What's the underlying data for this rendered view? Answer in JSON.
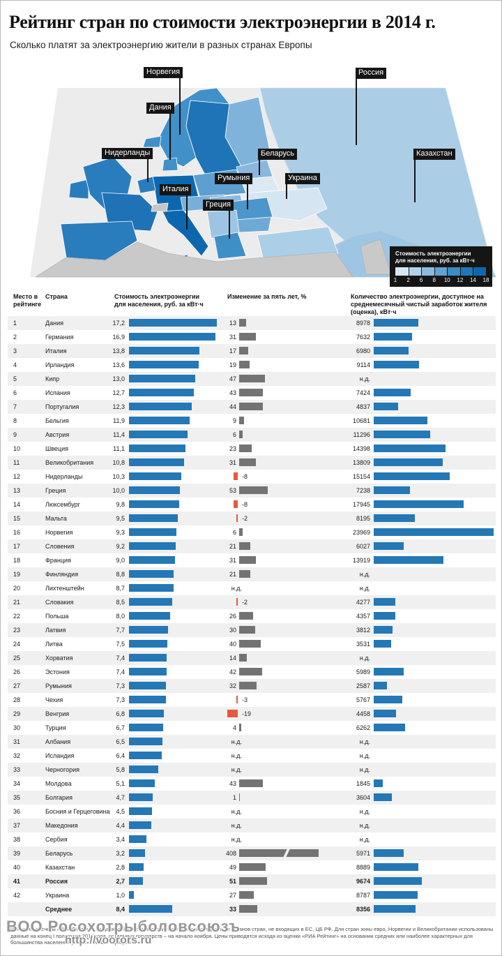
{
  "title": "Рейтинг стран по стоимости электроэнергии в 2014 г.",
  "subtitle": "Сколько платят за электроэнергию жители в разных странах Европы",
  "colors": {
    "bar_blue": "#2478b5",
    "bar_gray": "#737373",
    "bar_red": "#e8583f",
    "row_alt": "#f0f0f0",
    "label_bg": "#151515"
  },
  "map": {
    "labels": [
      {
        "id": "norway",
        "text": "Норвегия"
      },
      {
        "id": "russia",
        "text": "Россия"
      },
      {
        "id": "denmark",
        "text": "Дания"
      },
      {
        "id": "netherlands",
        "text": "Нидерланды"
      },
      {
        "id": "belarus",
        "text": "Беларусь"
      },
      {
        "id": "kazakhstan",
        "text": "Казахстан"
      },
      {
        "id": "romania",
        "text": "Румыния"
      },
      {
        "id": "ukraine",
        "text": "Украина"
      },
      {
        "id": "italy",
        "text": "Италия"
      },
      {
        "id": "greece",
        "text": "Греция"
      }
    ],
    "legend": {
      "title_line1": "Стоимость электроэнергии",
      "title_line2": "для населения, руб. за кВт·ч",
      "ticks": [
        1,
        2,
        6,
        8,
        10,
        12,
        14,
        18
      ],
      "colors": [
        "#d8e7f4",
        "#b3d2ea",
        "#8bbade",
        "#61a3d2",
        "#3a8cc5",
        "#1f78b6",
        "#0e67ad"
      ]
    }
  },
  "table": {
    "headers": {
      "rank": "Место в рейтинге",
      "country": "Страна",
      "cost": "Стоимость электроэнергии для населения, руб. за кВт·ч",
      "change": "Изменение за пять лет, %",
      "kwh": "Количество электроэнергии, доступное на среднемесячный чистый заработок жителя (оценка), кВт·ч"
    },
    "nd_label": "н.д."
  },
  "chart_data": {
    "type": "table",
    "title": "Рейтинг стран по стоимости электроэнергии в 2014 г.",
    "columns": [
      "Место в рейтинге",
      "Страна",
      "Стоимость электроэнергии для населения, руб. за кВт·ч",
      "Изменение за пять лет, %",
      "Количество электроэнергии, доступное на среднемесячный чистый заработок жителя (оценка), кВт·ч"
    ],
    "cost_axis_max": 17.2,
    "kwh_axis_max": 23969,
    "rows": [
      {
        "rank": "1",
        "name": "Дания",
        "cost": 17.2,
        "chg": 13,
        "kwh": 8978
      },
      {
        "rank": "2",
        "name": "Германия",
        "cost": 16.9,
        "chg": 31,
        "kwh": 7632
      },
      {
        "rank": "3",
        "name": "Италия",
        "cost": 13.8,
        "chg": 17,
        "kwh": 6980
      },
      {
        "rank": "4",
        "name": "Ирландия",
        "cost": 13.6,
        "chg": 19,
        "kwh": 9114
      },
      {
        "rank": "5",
        "name": "Кипр",
        "cost": 13.0,
        "chg": 47,
        "kwh": null
      },
      {
        "rank": "6",
        "name": "Испания",
        "cost": 12.7,
        "chg": 43,
        "kwh": 7424
      },
      {
        "rank": "7",
        "name": "Португалия",
        "cost": 12.3,
        "chg": 44,
        "kwh": 4837
      },
      {
        "rank": "8",
        "name": "Бельгия",
        "cost": 11.9,
        "chg": 9,
        "kwh": 10681
      },
      {
        "rank": "9",
        "name": "Австрия",
        "cost": 11.4,
        "chg": 6,
        "kwh": 11296
      },
      {
        "rank": "10",
        "name": "Швеция",
        "cost": 11.1,
        "chg": 23,
        "kwh": 14398
      },
      {
        "rank": "11",
        "name": "Великобритания",
        "cost": 10.8,
        "chg": 31,
        "kwh": 13809
      },
      {
        "rank": "12",
        "name": "Нидерланды",
        "cost": 10.3,
        "chg": -8,
        "kwh": 15154
      },
      {
        "rank": "13",
        "name": "Греция",
        "cost": 10.0,
        "chg": 53,
        "kwh": 7238
      },
      {
        "rank": "14",
        "name": "Люксембург",
        "cost": 9.8,
        "chg": -8,
        "kwh": 17945
      },
      {
        "rank": "15",
        "name": "Мальта",
        "cost": 9.5,
        "chg": -2,
        "kwh": 8195
      },
      {
        "rank": "16",
        "name": "Норвегия",
        "cost": 9.3,
        "chg": 6,
        "kwh": 23969
      },
      {
        "rank": "17",
        "name": "Словения",
        "cost": 9.2,
        "chg": 21,
        "kwh": 6027
      },
      {
        "rank": "18",
        "name": "Франция",
        "cost": 9.0,
        "chg": 31,
        "kwh": 13919
      },
      {
        "rank": "19",
        "name": "Финляндия",
        "cost": 8.8,
        "chg": 21,
        "kwh": null
      },
      {
        "rank": "20",
        "name": "Лихтенштейн",
        "cost": 8.7,
        "chg": null,
        "kwh": null
      },
      {
        "rank": "21",
        "name": "Словакия",
        "cost": 8.5,
        "chg": -2,
        "kwh": 4277
      },
      {
        "rank": "22",
        "name": "Польша",
        "cost": 8.0,
        "chg": 26,
        "kwh": 4357
      },
      {
        "rank": "23",
        "name": "Латвия",
        "cost": 7.7,
        "chg": 30,
        "kwh": 3812
      },
      {
        "rank": "24",
        "name": "Литва",
        "cost": 7.5,
        "chg": 40,
        "kwh": 3531
      },
      {
        "rank": "25",
        "name": "Хорватия",
        "cost": 7.4,
        "chg": 14,
        "kwh": null
      },
      {
        "rank": "26",
        "name": "Эстония",
        "cost": 7.4,
        "chg": 42,
        "kwh": 5989
      },
      {
        "rank": "27",
        "name": "Румыния",
        "cost": 7.3,
        "chg": 32,
        "kwh": 2587
      },
      {
        "rank": "28",
        "name": "Чехия",
        "cost": 7.3,
        "chg": -3,
        "kwh": 5767
      },
      {
        "rank": "29",
        "name": "Венгрия",
        "cost": 6.8,
        "chg": -19,
        "kwh": 4458
      },
      {
        "rank": "30",
        "name": "Турция",
        "cost": 6.7,
        "chg": 4,
        "kwh": 6262
      },
      {
        "rank": "31",
        "name": "Албания",
        "cost": 6.5,
        "chg": null,
        "kwh": null
      },
      {
        "rank": "32",
        "name": "Исландия",
        "cost": 6.4,
        "chg": null,
        "kwh": null
      },
      {
        "rank": "33",
        "name": "Черногория",
        "cost": 5.8,
        "chg": null,
        "kwh": null
      },
      {
        "rank": "34",
        "name": "Молдова",
        "cost": 5.1,
        "chg": 43,
        "kwh": 1845
      },
      {
        "rank": "35",
        "name": "Болгария",
        "cost": 4.7,
        "chg": 1,
        "kwh": 3604
      },
      {
        "rank": "36",
        "name": "Босния и Герцеговина",
        "cost": 4.5,
        "chg": null,
        "kwh": null
      },
      {
        "rank": "37",
        "name": "Македония",
        "cost": 4.4,
        "chg": null,
        "kwh": null
      },
      {
        "rank": "38",
        "name": "Сербия",
        "cost": 3.4,
        "chg": null,
        "kwh": null
      },
      {
        "rank": "39",
        "name": "Беларусь",
        "cost": 3.2,
        "chg": 408,
        "kwh": 5971,
        "truncated": true
      },
      {
        "rank": "40",
        "name": "Казахстан",
        "cost": 2.8,
        "chg": 49,
        "kwh": 8889
      },
      {
        "rank": "41",
        "name": "Россия",
        "cost": 2.7,
        "chg": 51,
        "kwh": 9674,
        "bold": true
      },
      {
        "rank": "42",
        "name": "Украина",
        "cost": 1.0,
        "chg": 27,
        "kwh": 8787
      },
      {
        "rank": "",
        "name": "Среднее",
        "cost": 8.4,
        "chg": 33,
        "kwh": 8356,
        "bold": true
      }
    ]
  },
  "footer": {
    "source": "Источник: расчеты «РИА Рейтинг» по данным Евростата, статистических и регулирующих органов стран, не входящих в ЕС, ЦБ РФ. Для стран зоны евро, Норвегии и Великобритании использованы данные на конец I полугодия 2014 года, остальных государств – на начало ноября. Цены приводятся исходя из оценки «РИА Рейтинг» на основании средних или наиболее характерных для большинства населения установленных тарифов",
    "watermark_org": "ВОО Росохотрыболовсоюзъ",
    "watermark_url": "http://voorors.ru"
  }
}
